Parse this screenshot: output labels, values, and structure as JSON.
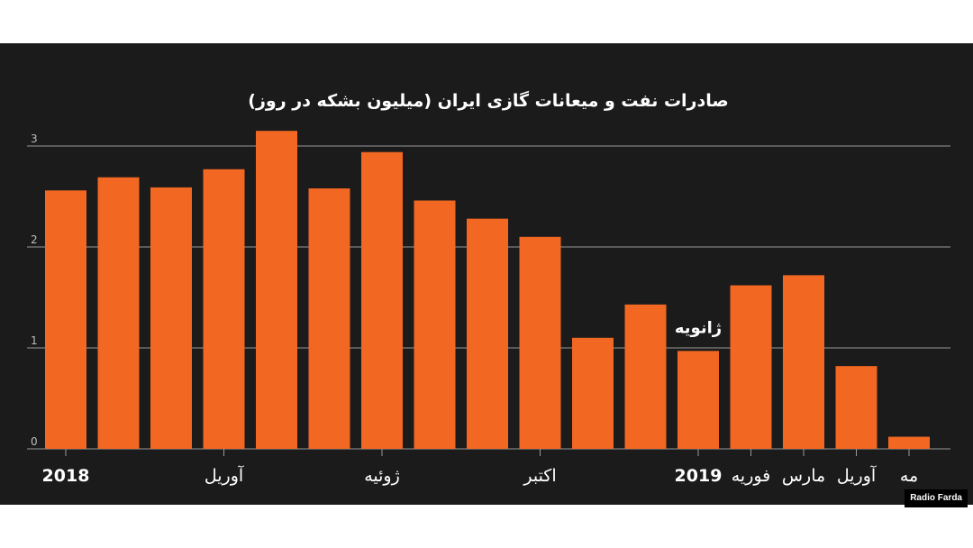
{
  "chart_data": {
    "type": "bar",
    "title": "صادرات نفت و میعانات گازی ایران (میلیون بشکه در روز)",
    "values": [
      2.56,
      2.69,
      2.59,
      2.77,
      3.15,
      2.58,
      2.94,
      2.46,
      2.28,
      2.1,
      1.1,
      1.43,
      0.97,
      1.62,
      1.72,
      0.82,
      0.12
    ],
    "ylim": [
      0,
      3
    ],
    "y_ticks": [
      "0",
      "1",
      "2",
      "3"
    ],
    "x_tick_labels": [
      {
        "index": 0,
        "label": "2018",
        "bold": true
      },
      {
        "index": 3,
        "label": "آوریل",
        "bold": false
      },
      {
        "index": 6,
        "label": "ژوئیه",
        "bold": false
      },
      {
        "index": 9,
        "label": "اکتبر",
        "bold": false
      },
      {
        "index": 12,
        "label": "2019",
        "bold": true
      },
      {
        "index": 13,
        "label": "فوریه",
        "bold": false
      },
      {
        "index": 14,
        "label": "مارس",
        "bold": false
      },
      {
        "index": 15,
        "label": "آوریل",
        "bold": false
      },
      {
        "index": 16,
        "label": "مه",
        "bold": false
      }
    ],
    "annotations": [
      {
        "index": 12,
        "text": "ژانویه"
      }
    ],
    "grid": true,
    "colors": {
      "bar": "#f26722",
      "background": "#1b1b1b",
      "gridline": "#9a9a9a",
      "text": "#ffffff",
      "tick_text": "#bdbdbd"
    }
  },
  "source_credit": "Radio Farda"
}
